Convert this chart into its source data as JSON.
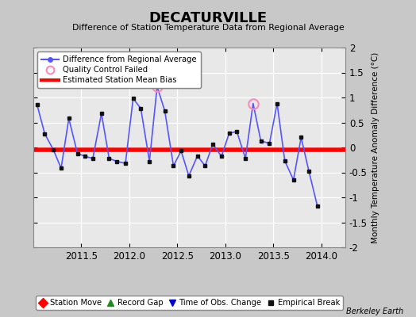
{
  "title": "DECATURVILLE",
  "subtitle": "Difference of Station Temperature Data from Regional Average",
  "ylabel": "Monthly Temperature Anomaly Difference (°C)",
  "xlim": [
    2011.0,
    2014.25
  ],
  "ylim": [
    -2.0,
    2.0
  ],
  "xticks": [
    2011.5,
    2012.0,
    2012.5,
    2013.0,
    2013.5,
    2014.0
  ],
  "yticks": [
    -2.0,
    -1.5,
    -1.0,
    -0.5,
    0.0,
    0.5,
    1.0,
    1.5,
    2.0
  ],
  "bias_value": -0.05,
  "line_color": "#5555ff",
  "bias_color": "#ff0000",
  "marker_color": "#111111",
  "qc_fail_color": "#ff88bb",
  "fig_background": "#c8c8c8",
  "plot_background": "#e8e8e8",
  "x_data": [
    2011.04,
    2011.12,
    2011.21,
    2011.29,
    2011.37,
    2011.46,
    2011.54,
    2011.62,
    2011.71,
    2011.79,
    2011.87,
    2011.96,
    2012.04,
    2012.12,
    2012.21,
    2012.29,
    2012.37,
    2012.46,
    2012.54,
    2012.62,
    2012.71,
    2012.79,
    2012.87,
    2012.96,
    2013.04,
    2013.12,
    2013.21,
    2013.29,
    2013.37,
    2013.46,
    2013.54,
    2013.62,
    2013.71,
    2013.79,
    2013.87,
    2013.96
  ],
  "y_data": [
    0.85,
    0.27,
    -0.05,
    -0.42,
    0.58,
    -0.12,
    -0.18,
    -0.22,
    0.68,
    -0.22,
    -0.28,
    -0.32,
    0.98,
    0.78,
    -0.28,
    1.22,
    0.73,
    -0.37,
    -0.07,
    -0.57,
    -0.17,
    -0.37,
    0.07,
    -0.18,
    0.28,
    0.32,
    -0.22,
    0.88,
    0.13,
    0.08,
    0.88,
    -0.27,
    -0.65,
    0.2,
    -0.47,
    -1.18
  ],
  "qc_fail_indices": [
    15,
    27
  ],
  "watermark": "Berkeley Earth",
  "legend1": [
    {
      "label": "Difference from Regional Average",
      "color": "#5555ff",
      "lw": 1.5,
      "marker": "o",
      "ms": 4
    },
    {
      "label": "Quality Control Failed",
      "color": "#ff88bb",
      "lw": 0,
      "marker": "o",
      "ms": 7
    },
    {
      "label": "Estimated Station Mean Bias",
      "color": "#ff0000",
      "lw": 3,
      "marker": "none",
      "ms": 0
    }
  ],
  "legend2": [
    {
      "label": "Station Move",
      "color": "#ff0000",
      "marker": "D",
      "ms": 6
    },
    {
      "label": "Record Gap",
      "color": "#228822",
      "marker": "^",
      "ms": 6
    },
    {
      "label": "Time of Obs. Change",
      "color": "#0000cc",
      "marker": "v",
      "ms": 6
    },
    {
      "label": "Empirical Break",
      "color": "#111111",
      "marker": "s",
      "ms": 5
    }
  ]
}
